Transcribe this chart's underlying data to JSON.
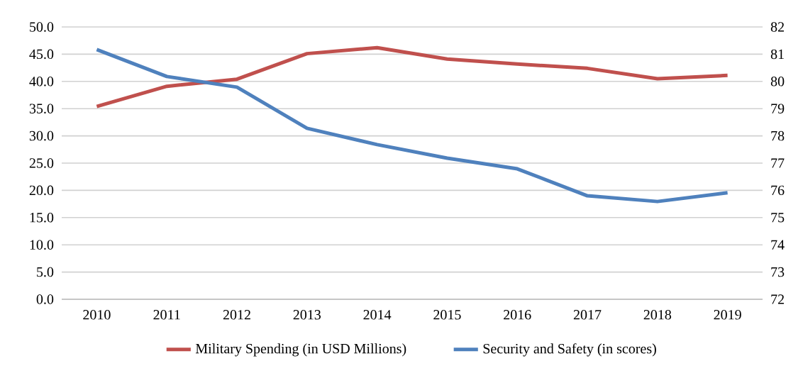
{
  "chart_data": {
    "type": "line",
    "categories": [
      "2010",
      "2011",
      "2012",
      "2013",
      "2014",
      "2015",
      "2016",
      "2017",
      "2018",
      "2019"
    ],
    "series": [
      {
        "name": "Military Spending (in USD Millions)",
        "color": "#c0504d",
        "values": [
          35.4,
          39.1,
          40.4,
          45.1,
          46.2,
          44.1,
          43.2,
          42.4,
          40.5,
          41.1
        ]
      },
      {
        "name": "Security and Safety (in scores)",
        "color": "#4f81bd",
        "axis": "y2",
        "values": [
          81.17,
          80.18,
          79.79,
          78.28,
          77.68,
          77.18,
          76.79,
          75.8,
          75.59,
          75.91
        ]
      }
    ],
    "ylim": [
      0,
      50
    ],
    "yticks": [
      {
        "value": 0,
        "label": "0.0"
      },
      {
        "value": 5,
        "label": "5.0"
      },
      {
        "value": 10,
        "label": "10.0"
      },
      {
        "value": 15,
        "label": "15.0"
      },
      {
        "value": 20,
        "label": "20.0"
      },
      {
        "value": 25,
        "label": "25.0"
      },
      {
        "value": 30,
        "label": "30.0"
      },
      {
        "value": 35,
        "label": "35.0"
      },
      {
        "value": 40,
        "label": "40.0"
      },
      {
        "value": 45,
        "label": "45.0"
      },
      {
        "value": 50,
        "label": "50.0"
      }
    ],
    "y2lim": [
      72,
      82
    ],
    "y2ticks": [
      72,
      73,
      74,
      75,
      76,
      77,
      78,
      79,
      80,
      81,
      82
    ],
    "grid": "y",
    "legend": "bottom",
    "line_style": "solid"
  }
}
